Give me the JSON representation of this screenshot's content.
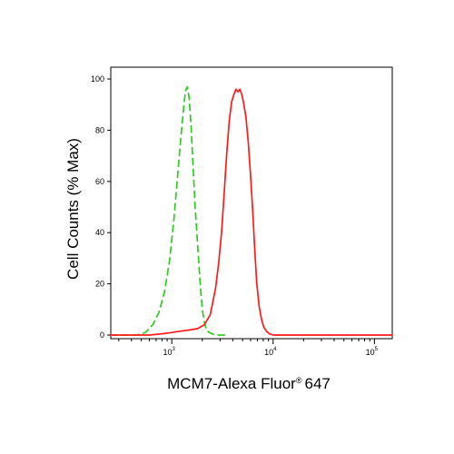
{
  "chart_data": {
    "type": "line",
    "title": "",
    "xlabel": "MCM7-Alexa Fluor",
    "xlabel_suffix": "647",
    "xlabel_mark": "®",
    "ylabel": "Cell Counts (% Max)",
    "xscale": "log",
    "xlim": [
      250,
      150000
    ],
    "ylim": [
      0,
      100
    ],
    "yticks": [
      0,
      20,
      40,
      60,
      80,
      100
    ],
    "xticks": [
      {
        "base": "10",
        "exp": "3",
        "value": 1000
      },
      {
        "base": "10",
        "exp": "4",
        "value": 10000
      },
      {
        "base": "10",
        "exp": "5",
        "value": 100000
      }
    ],
    "grid": false,
    "series": [
      {
        "color": "#2ecc1f",
        "dash": "dashed",
        "x": [
          250,
          350,
          450,
          550,
          650,
          750,
          850,
          950,
          1050,
          1130,
          1210,
          1290,
          1360,
          1420,
          1480,
          1550,
          1620,
          1700,
          1800,
          1900,
          2000,
          2100,
          2200,
          2350,
          2500,
          2700,
          3000,
          3500
        ],
        "y": [
          0,
          0,
          0,
          1,
          4,
          9,
          17,
          29,
          45,
          60,
          74,
          86,
          95,
          97,
          93,
          82,
          66,
          50,
          35,
          21,
          10,
          5,
          2,
          1,
          0.5,
          0,
          0,
          0
        ]
      },
      {
        "color": "#ff1a1a",
        "dash": "solid",
        "x": [
          250,
          600,
          800,
          1000,
          1200,
          1500,
          1800,
          2100,
          2400,
          2700,
          2900,
          3100,
          3300,
          3500,
          3700,
          3900,
          4100,
          4300,
          4500,
          4700,
          4900,
          5100,
          5400,
          5700,
          6000,
          6300,
          6600,
          6900,
          7300,
          7700,
          8100,
          8600,
          9200,
          10000,
          12000,
          20000,
          150000
        ],
        "y": [
          0,
          0,
          0.5,
          1,
          1.5,
          2,
          2.5,
          4,
          8,
          18,
          28,
          40,
          56,
          72,
          84,
          91,
          94,
          96,
          95,
          96,
          94,
          91,
          85,
          75,
          62,
          48,
          33,
          20,
          11,
          6,
          3,
          1.5,
          0.5,
          0,
          0,
          0,
          0
        ]
      }
    ]
  }
}
